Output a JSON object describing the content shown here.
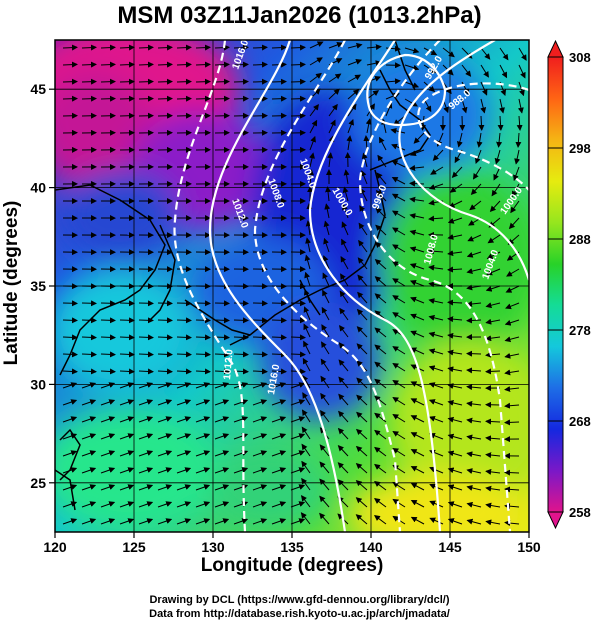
{
  "title": "MSM 03Z11Jan2026 (1013.2hPa)",
  "x_axis": {
    "label": "Longitude (degrees)",
    "range": [
      120,
      150
    ],
    "ticks": [
      "120",
      "125",
      "130",
      "135",
      "140",
      "145",
      "150"
    ]
  },
  "y_axis": {
    "label": "Latitude  (degrees)",
    "range": [
      22.5,
      47.5
    ],
    "ticks": [
      "25",
      "30",
      "35",
      "40",
      "45"
    ]
  },
  "colorbar": {
    "range": [
      258,
      308
    ],
    "ticks": [
      "258",
      "268",
      "278",
      "288",
      "298",
      "308"
    ],
    "colors": [
      "#e0148c",
      "#7a18c8",
      "#1428e0",
      "#1e6ee6",
      "#14c8dc",
      "#14dc96",
      "#28d228",
      "#96e61e",
      "#e6eb0f",
      "#f5b414",
      "#ff6414",
      "#f01e1e"
    ]
  },
  "isobar_labels": [
    "1016.0",
    "1012.0",
    "1008.0",
    "1004.0",
    "1000.0",
    "996.0",
    "992.0",
    "988.0",
    "1000.0",
    "1004.0",
    "1008.0",
    "1012.0",
    "1016.0"
  ],
  "credits": {
    "drawing": "Drawing by DCL (https://www.gfd-dennou.org/library/dcl/)",
    "data": "Data from http://database.rish.kyoto-u.ac.jp/arch/jmadata/"
  },
  "colors": {
    "isobar": "#ffffff",
    "coastline": "#000000",
    "wind_vector": "#000000",
    "grid": "#000000"
  }
}
